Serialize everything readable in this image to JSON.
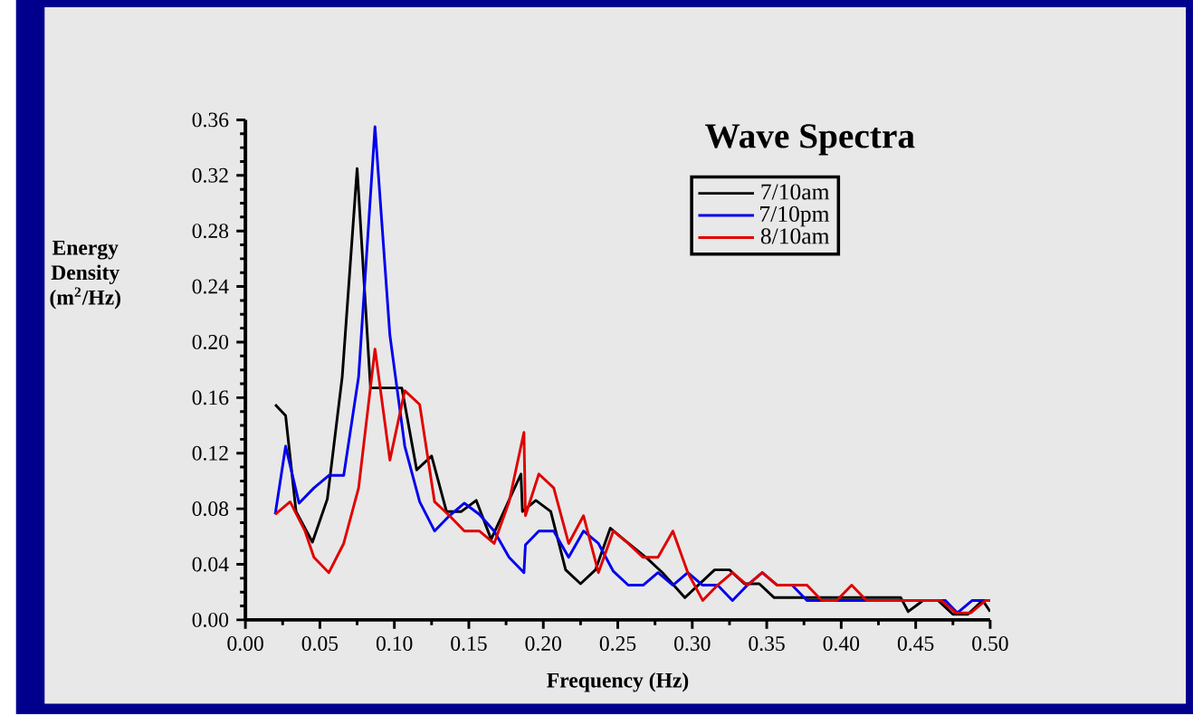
{
  "chart_data": {
    "type": "line",
    "title": "Wave Spectra",
    "xlabel": "Frequency (Hz)",
    "ylabel": "Energy Density (m$^{2}$/Hz)",
    "xlim": [
      0,
      0.5
    ],
    "ylim": [
      0,
      0.36
    ],
    "xticks": [
      {
        "value": 0,
        "label": "0.00"
      },
      {
        "value": 0.05,
        "label": "0.05"
      },
      {
        "value": 0.1,
        "label": "0.10"
      },
      {
        "value": 0.15,
        "label": "0.15"
      },
      {
        "value": 0.2,
        "label": "0.20"
      },
      {
        "value": 0.25,
        "label": "0.25"
      },
      {
        "value": 0.3,
        "label": "0.30"
      },
      {
        "value": 0.35,
        "label": "0.35"
      },
      {
        "value": 0.4,
        "label": "0.40"
      },
      {
        "value": 0.45,
        "label": "0.45"
      },
      {
        "value": 0.5,
        "label": "0.50"
      }
    ],
    "yticks": [
      {
        "value": 0,
        "label": "0.00"
      },
      {
        "value": 0.04,
        "label": "0.04"
      },
      {
        "value": 0.08,
        "label": "0.08"
      },
      {
        "value": 0.12,
        "label": "0.12"
      },
      {
        "value": 0.16,
        "label": "0.16"
      },
      {
        "value": 0.2,
        "label": "0.20"
      },
      {
        "value": 0.24,
        "label": "0.24"
      },
      {
        "value": 0.28,
        "label": "0.28"
      },
      {
        "value": 0.32,
        "label": "0.32"
      },
      {
        "value": 0.36,
        "label": "0.36"
      }
    ],
    "grid": false,
    "legend": "top right",
    "marker": "none",
    "line_style": "solid",
    "series": [
      {
        "name": "7/10am",
        "color": "#000000",
        "x": [
          0.02,
          0.027,
          0.034,
          0.045,
          0.055,
          0.065,
          0.075,
          0.084,
          0.1,
          0.105,
          0.115,
          0.125,
          0.135,
          0.145,
          0.155,
          0.165,
          0.185,
          0.186,
          0.195,
          0.205,
          0.215,
          0.225,
          0.235,
          0.245,
          0.255,
          0.27,
          0.28,
          0.295,
          0.305,
          0.315,
          0.325,
          0.335,
          0.345,
          0.355,
          0.38,
          0.44,
          0.445,
          0.455,
          0.465,
          0.475,
          0.485,
          0.495,
          0.5
        ],
        "values": [
          0.155,
          0.147,
          0.078,
          0.056,
          0.087,
          0.175,
          0.325,
          0.167,
          0.167,
          0.167,
          0.108,
          0.118,
          0.078,
          0.078,
          0.086,
          0.058,
          0.105,
          0.078,
          0.086,
          0.078,
          0.036,
          0.026,
          0.036,
          0.066,
          0.057,
          0.044,
          0.034,
          0.016,
          0.026,
          0.036,
          0.036,
          0.026,
          0.026,
          0.016,
          0.016,
          0.016,
          0.006,
          0.014,
          0.014,
          0.004,
          0.004,
          0.014,
          0.006
        ]
      },
      {
        "name": "7/10pm",
        "color": "#0000ee",
        "x": [
          0.02,
          0.027,
          0.036,
          0.046,
          0.056,
          0.066,
          0.076,
          0.087,
          0.097,
          0.107,
          0.117,
          0.127,
          0.137,
          0.147,
          0.157,
          0.167,
          0.177,
          0.187,
          0.188,
          0.197,
          0.207,
          0.217,
          0.227,
          0.237,
          0.247,
          0.257,
          0.267,
          0.277,
          0.287,
          0.297,
          0.307,
          0.317,
          0.327,
          0.337,
          0.347,
          0.357,
          0.367,
          0.377,
          0.39,
          0.47,
          0.478,
          0.488,
          0.5
        ],
        "values": [
          0.076,
          0.125,
          0.084,
          0.095,
          0.104,
          0.104,
          0.175,
          0.355,
          0.205,
          0.125,
          0.085,
          0.064,
          0.075,
          0.084,
          0.076,
          0.064,
          0.045,
          0.034,
          0.054,
          0.064,
          0.064,
          0.045,
          0.064,
          0.055,
          0.035,
          0.025,
          0.025,
          0.034,
          0.025,
          0.034,
          0.025,
          0.025,
          0.014,
          0.025,
          0.034,
          0.025,
          0.025,
          0.014,
          0.014,
          0.014,
          0.005,
          0.014,
          0.014
        ]
      },
      {
        "name": "8/10am",
        "color": "#e00000",
        "x": [
          0.02,
          0.03,
          0.04,
          0.046,
          0.056,
          0.066,
          0.076,
          0.087,
          0.097,
          0.107,
          0.117,
          0.127,
          0.137,
          0.147,
          0.157,
          0.167,
          0.177,
          0.187,
          0.188,
          0.197,
          0.207,
          0.217,
          0.227,
          0.237,
          0.247,
          0.257,
          0.267,
          0.277,
          0.287,
          0.297,
          0.307,
          0.317,
          0.327,
          0.337,
          0.347,
          0.357,
          0.367,
          0.377,
          0.387,
          0.397,
          0.407,
          0.417,
          0.467,
          0.477,
          0.487,
          0.497,
          0.5
        ],
        "values": [
          0.076,
          0.085,
          0.064,
          0.045,
          0.034,
          0.055,
          0.095,
          0.195,
          0.115,
          0.165,
          0.155,
          0.085,
          0.075,
          0.064,
          0.064,
          0.055,
          0.085,
          0.135,
          0.075,
          0.105,
          0.095,
          0.055,
          0.075,
          0.034,
          0.064,
          0.055,
          0.045,
          0.045,
          0.064,
          0.034,
          0.014,
          0.025,
          0.034,
          0.025,
          0.034,
          0.025,
          0.025,
          0.025,
          0.014,
          0.014,
          0.025,
          0.014,
          0.014,
          0.005,
          0.005,
          0.014,
          0.014
        ]
      }
    ]
  }
}
